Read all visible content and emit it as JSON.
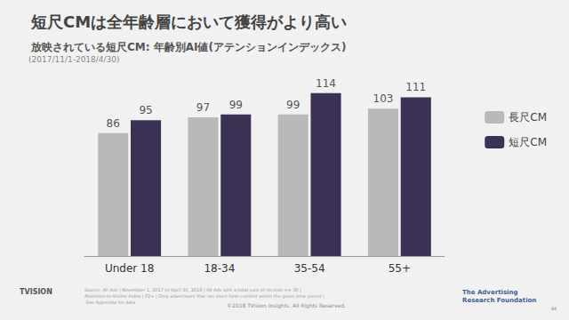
{
  "chart_data": {
    "type": "bar",
    "title": "短尺CMは全年齢層において獲得がより高い",
    "subtitle": "放映されている短尺CM: 年齢別AI値(アテンションインデックス)",
    "annotations": [
      "(2017/11/1-2018/4/30)",
      "Source: All Ads | November 1, 2017 to April 30, 2018 | All Ads with a total sum of records >= 30 | Attention-to-Visible Index | P2+ | Only advertisers that ran short form content within the given time period | See Appendix for data",
      "©2018 TVision Insights. All Rights Reserved.",
      "TVISION",
      "The Advertising Research Foundation",
      "44"
    ],
    "categories": [
      "Under 18",
      "18-34",
      "35-54",
      "55+"
    ],
    "series": [
      {
        "name": "長尺CM",
        "color": "#b9b9bb",
        "values": [
          86,
          97,
          99,
          103
        ]
      },
      {
        "name": "短尺CM",
        "color": "#3b3154",
        "values": [
          95,
          99,
          114,
          111
        ]
      }
    ],
    "ylim": [
      0,
      120
    ],
    "grid": false,
    "legend": "top-right",
    "data_labels": true,
    "tick_labels": "x"
  }
}
